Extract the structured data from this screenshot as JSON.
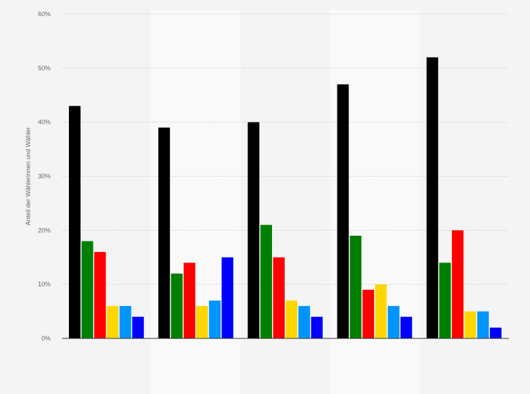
{
  "chart_data": {
    "type": "bar",
    "title": "",
    "xlabel": "",
    "ylabel": "Anteil der Wählerinnen und Wähler",
    "ylim": [
      0,
      60
    ],
    "yticks": [
      0,
      10,
      20,
      30,
      40,
      50,
      60
    ],
    "ytick_suffix": "%",
    "grid": true,
    "legend": "none",
    "categories": [
      "",
      "",
      "",
      "",
      ""
    ],
    "series": [
      {
        "color": "#000000",
        "values": [
          43,
          39,
          40,
          47,
          52
        ]
      },
      {
        "color": "#008000",
        "values": [
          18,
          12,
          21,
          19,
          14
        ]
      },
      {
        "color": "#ff0000",
        "values": [
          16,
          14,
          15,
          9,
          20
        ]
      },
      {
        "color": "#ffd700",
        "values": [
          6,
          6,
          7,
          10,
          5
        ]
      },
      {
        "color": "#0095ff",
        "values": [
          6,
          7,
          6,
          6,
          5
        ]
      },
      {
        "color": "#0000ff",
        "values": [
          4,
          15,
          4,
          4,
          2
        ]
      }
    ]
  }
}
